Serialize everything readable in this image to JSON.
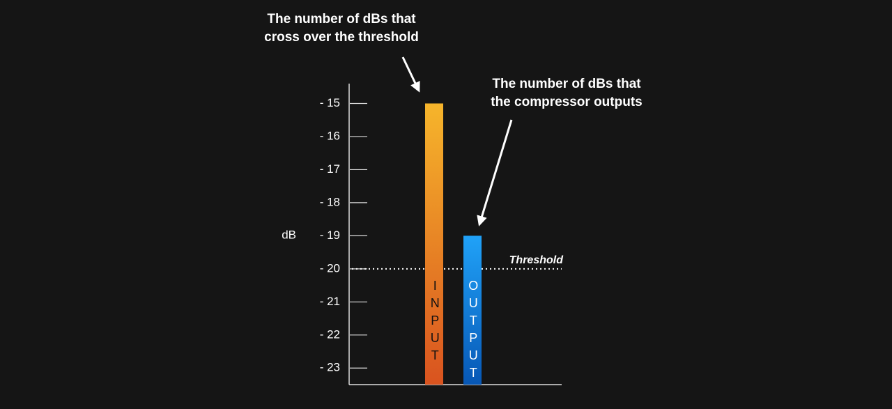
{
  "chart_data": {
    "type": "bar",
    "y_label": "dB",
    "categories": [
      "INPUT",
      "OUTPUT"
    ],
    "values": [
      -15,
      -19
    ],
    "colors": [
      [
        "#f6b52b",
        "#d9531f"
      ],
      [
        "#20a2f8",
        "#0757b5"
      ]
    ],
    "ylim": [
      -23.5,
      -14.4
    ],
    "yticks": [
      {
        "value": -15,
        "label": "- 15"
      },
      {
        "value": -16,
        "label": "- 16"
      },
      {
        "value": -17,
        "label": "- 17"
      },
      {
        "value": -18,
        "label": "- 18"
      },
      {
        "value": -19,
        "label": "- 19"
      },
      {
        "value": -20,
        "label": "- 20"
      },
      {
        "value": -21,
        "label": "- 21"
      },
      {
        "value": -22,
        "label": "- 22"
      },
      {
        "value": -23,
        "label": "- 23"
      }
    ],
    "threshold": {
      "value": -20,
      "label": "Threshold"
    },
    "annotations": [
      {
        "lines": [
          "The number of dBs that",
          "cross over the threshold"
        ]
      },
      {
        "lines": [
          "The number of dBs that",
          "the compressor outputs"
        ]
      }
    ]
  }
}
